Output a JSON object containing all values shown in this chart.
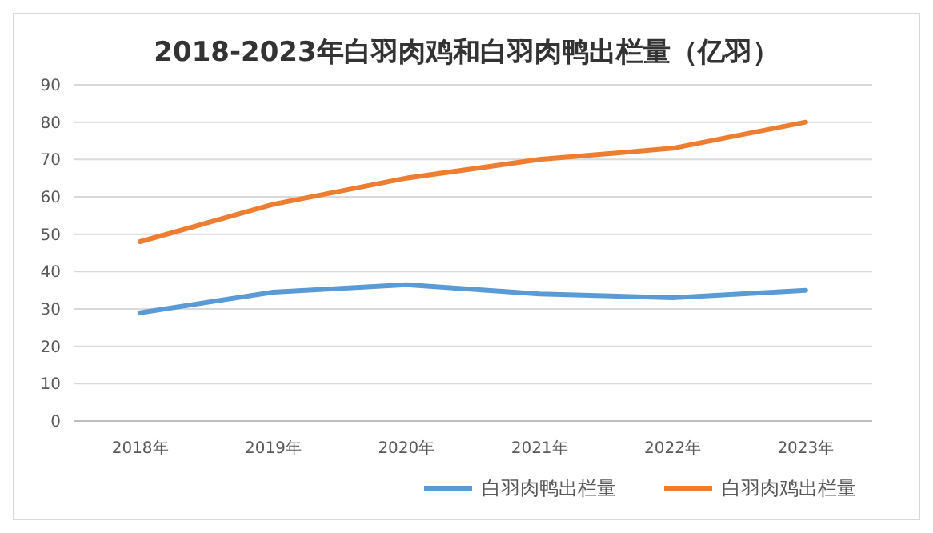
{
  "chart_data": {
    "type": "line",
    "title": "2018-2023年白羽肉鸡和白羽肉鸭出栏量（亿羽）",
    "categories": [
      "2018年",
      "2019年",
      "2020年",
      "2021年",
      "2022年",
      "2023年"
    ],
    "series": [
      {
        "name": "白羽肉鸭出栏量",
        "color": "#5b9bd5",
        "values": [
          29,
          34.5,
          36.5,
          34,
          33,
          35
        ]
      },
      {
        "name": "白羽肉鸡出栏量",
        "color": "#ed7d31",
        "values": [
          48,
          58,
          65,
          70,
          73,
          80
        ]
      }
    ],
    "ylim": [
      0,
      90
    ],
    "yticks": [
      0,
      10,
      20,
      30,
      40,
      50,
      60,
      70,
      80,
      90
    ],
    "grid": "y",
    "legend": "bottom",
    "marker": "none",
    "line_style": "solid"
  }
}
